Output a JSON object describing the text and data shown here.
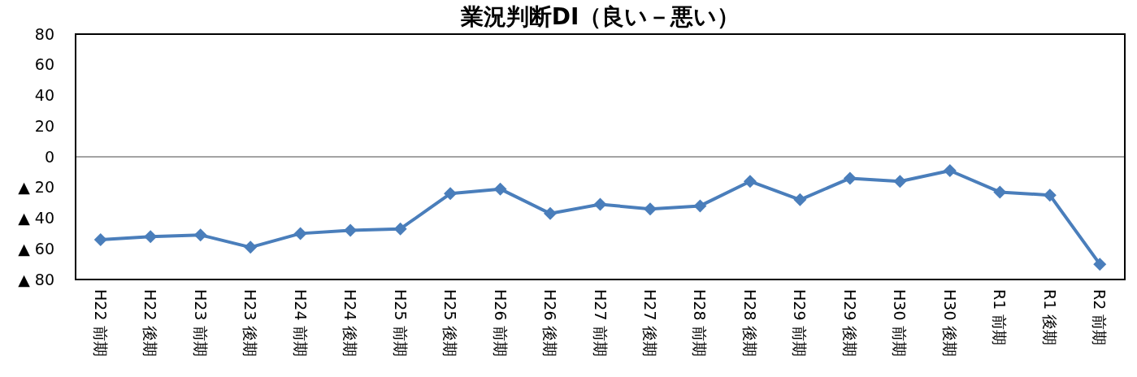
{
  "chart_data": {
    "type": "line",
    "title": "業況判断DI（良い－悪い）",
    "categories": [
      "H22 前期",
      "H22 後期",
      "H23 前期",
      "H23 後期",
      "H24 前期",
      "H24 後期",
      "H25 前期",
      "H25 後期",
      "H26 前期",
      "H26 後期",
      "H27 前期",
      "H27 後期",
      "H28 前期",
      "H28 後期",
      "H29 前期",
      "H29 後期",
      "H30 前期",
      "H30 後期",
      "R1 前期",
      "R1 後期",
      "R2 前期"
    ],
    "series": [
      {
        "color": "#4a7ebb",
        "values": [
          -54,
          -52,
          -51,
          -59,
          -50,
          -48,
          -47,
          -24,
          -21,
          -37,
          -31,
          -34,
          -32,
          -16,
          -28,
          -14,
          -16,
          -9,
          -23,
          -25,
          -70
        ]
      }
    ],
    "ylim": [
      -80,
      80
    ],
    "yticks": [
      {
        "value": -80,
        "label": "▲ 80"
      },
      {
        "value": -60,
        "label": "▲ 60"
      },
      {
        "value": -40,
        "label": "▲ 40"
      },
      {
        "value": -20,
        "label": "▲ 20"
      },
      0,
      20,
      40,
      60,
      80
    ],
    "ref_lines": [
      {
        "axis": "y",
        "value": 0,
        "color": "#868686"
      }
    ],
    "marker": "diamond",
    "line_style": "solid",
    "grid": false
  }
}
